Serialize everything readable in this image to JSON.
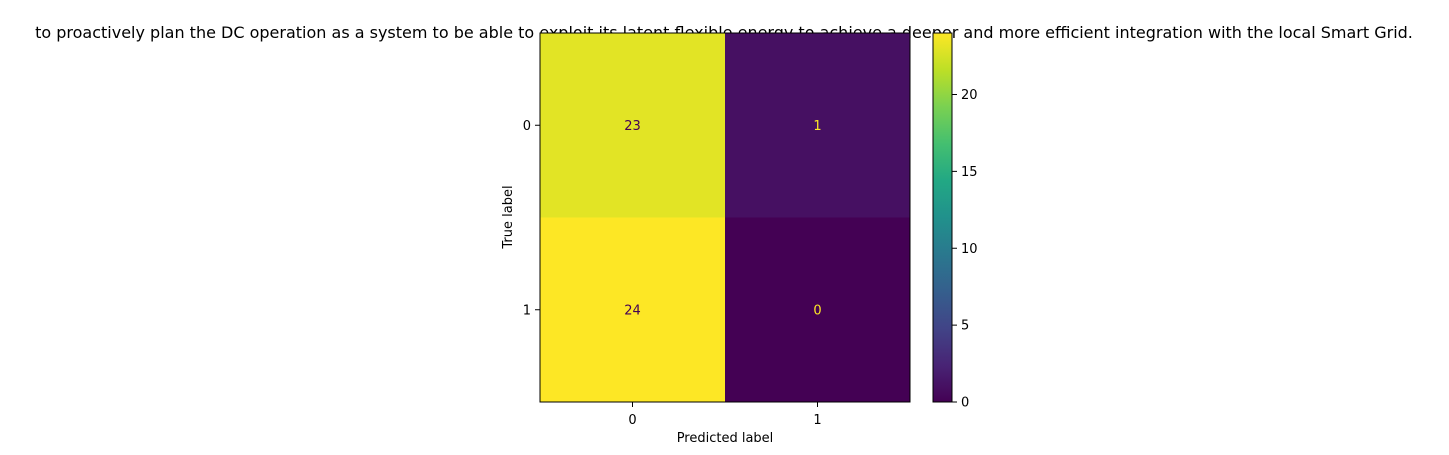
{
  "chart_data": {
    "type": "heatmap",
    "title": "to proactively plan the DC operation as a system to be able to exploit its latent flexible energy to achieve a deeper and more efficient integration with the local Smart Grid.",
    "xlabel": "Predicted label",
    "ylabel": "True label",
    "x_categories": [
      "0",
      "1"
    ],
    "y_categories": [
      "0",
      "1"
    ],
    "values": [
      [
        23,
        1
      ],
      [
        24,
        0
      ]
    ],
    "cell_labels": [
      [
        "23",
        "1"
      ],
      [
        "24",
        "0"
      ]
    ],
    "colormap": "viridis",
    "vmin": 0,
    "vmax": 24,
    "colorbar_ticks": [
      0,
      5,
      10,
      15,
      20
    ],
    "colorbar_tick_labels": [
      "0",
      "5",
      "10",
      "15",
      "20"
    ],
    "annotation_color_dark_cell": "#fde725",
    "annotation_color_light_cell": "#440154"
  }
}
